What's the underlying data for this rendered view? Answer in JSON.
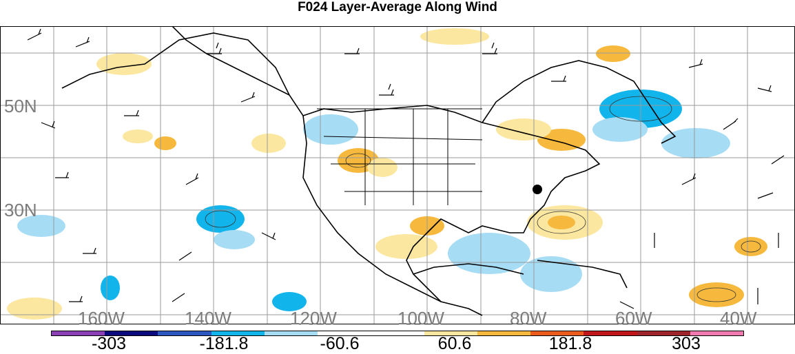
{
  "title": "F024 Layer-Average Along Wind",
  "lat_labels": [
    "50N",
    "30N"
  ],
  "lon_labels": [
    "160W",
    "140W",
    "120W",
    "100W",
    "80W",
    "60W",
    "40W"
  ],
  "colorbar": {
    "colors": [
      "#8b3fb5",
      "#0b0b7e",
      "#2b57c0",
      "#12b4ec",
      "#a7dcf5",
      "#ffffff",
      "#ffffff",
      "#fbe7a0",
      "#f6b93e",
      "#ea5b1c",
      "#c1171a",
      "#a0242b",
      "#f07ab0"
    ],
    "tick_labels": [
      "-303",
      "-181.8",
      "-60.6",
      "60.6",
      "181.8",
      "303"
    ]
  }
}
